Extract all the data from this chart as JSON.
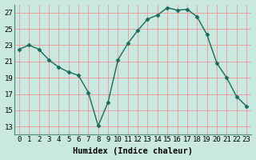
{
  "x": [
    0,
    1,
    2,
    3,
    4,
    5,
    6,
    7,
    8,
    9,
    10,
    11,
    12,
    13,
    14,
    15,
    16,
    17,
    18,
    19,
    20,
    21,
    22,
    23
  ],
  "y": [
    22.5,
    23.0,
    22.5,
    21.2,
    20.3,
    19.7,
    19.3,
    17.2,
    13.1,
    16.0,
    21.2,
    23.2,
    24.8,
    26.2,
    26.7,
    27.6,
    27.3,
    27.4,
    26.5,
    24.3,
    20.8,
    19.0,
    16.7,
    15.5
  ],
  "line_color": "#1a6b5a",
  "marker": "D",
  "marker_size": 2.5,
  "bg_color": "#c8e8e0",
  "grid_color_major": "#e8a0a0",
  "grid_color_minor": "#e8c0c0",
  "xlabel": "Humidex (Indice chaleur)",
  "xlim": [
    -0.5,
    23.5
  ],
  "ylim": [
    12,
    28
  ],
  "yticks": [
    13,
    15,
    17,
    19,
    21,
    23,
    25,
    27
  ],
  "xlabel_fontsize": 7.5,
  "tick_fontsize": 6.5,
  "linewidth": 1.0
}
